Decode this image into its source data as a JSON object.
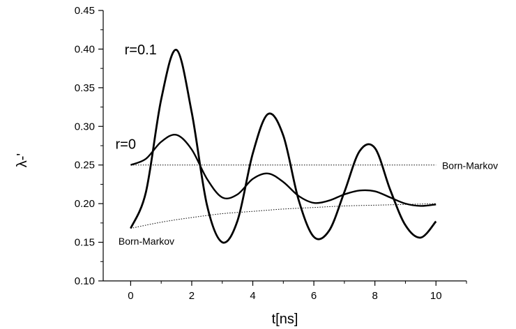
{
  "chart_data": {
    "type": "line",
    "title": "",
    "xlabel": "t[ns]",
    "ylabel": "λ-'",
    "xlim": [
      -0.9,
      11
    ],
    "ylim": [
      0.1,
      0.45
    ],
    "xticks": [
      0,
      2,
      4,
      6,
      8,
      10
    ],
    "xtick_labels": [
      "0",
      "2",
      "4",
      "6",
      "8",
      "10"
    ],
    "yticks": [
      0.1,
      0.15,
      0.2,
      0.25,
      0.3,
      0.35,
      0.4,
      0.45
    ],
    "ytick_labels": [
      "0.10",
      "0.15",
      "0.20",
      "0.25",
      "0.30",
      "0.35",
      "0.40",
      "0.45"
    ],
    "grid": false,
    "legend": "none",
    "series": [
      {
        "name": "r=0.1",
        "style": "solid-thick",
        "x": [
          0,
          0.5,
          1.0,
          1.5,
          2.0,
          2.5,
          3.0,
          3.5,
          4.0,
          4.5,
          5.0,
          5.5,
          6.0,
          6.5,
          7.0,
          7.5,
          8.0,
          8.5,
          9.0,
          9.5,
          10.0
        ],
        "y": [
          0.168,
          0.215,
          0.335,
          0.399,
          0.318,
          0.198,
          0.15,
          0.178,
          0.265,
          0.316,
          0.288,
          0.205,
          0.157,
          0.165,
          0.215,
          0.268,
          0.272,
          0.218,
          0.172,
          0.156,
          0.177
        ]
      },
      {
        "name": "r=0",
        "style": "solid",
        "x": [
          0,
          0.5,
          1.0,
          1.5,
          2.0,
          2.5,
          3.0,
          3.5,
          4.0,
          4.5,
          5.0,
          5.5,
          6.0,
          6.5,
          7.0,
          7.5,
          8.0,
          8.5,
          9.0,
          9.5,
          10.0
        ],
        "y": [
          0.25,
          0.258,
          0.28,
          0.289,
          0.27,
          0.232,
          0.208,
          0.212,
          0.232,
          0.239,
          0.228,
          0.21,
          0.201,
          0.204,
          0.212,
          0.217,
          0.216,
          0.208,
          0.2,
          0.197,
          0.199
        ]
      },
      {
        "name": "Born-Markov",
        "style": "dotted",
        "x": [
          0,
          10
        ],
        "y": [
          0.25,
          0.25
        ]
      },
      {
        "name": "Born-Markov",
        "style": "dotted",
        "x": [
          0,
          1,
          2,
          3,
          4,
          5,
          6,
          7,
          8,
          9,
          10
        ],
        "y": [
          0.168,
          0.176,
          0.182,
          0.187,
          0.19,
          0.193,
          0.195,
          0.197,
          0.198,
          0.199,
          0.2
        ]
      }
    ],
    "annotations": [
      {
        "text": "r=0.1",
        "x": -0.2,
        "y": 0.393
      },
      {
        "text": "r=0",
        "x": -0.5,
        "y": 0.271
      },
      {
        "text": "Born-Markov",
        "x": 10.2,
        "y": 0.245
      },
      {
        "text": "Born-Markov",
        "x": -0.4,
        "y": 0.147
      }
    ]
  }
}
